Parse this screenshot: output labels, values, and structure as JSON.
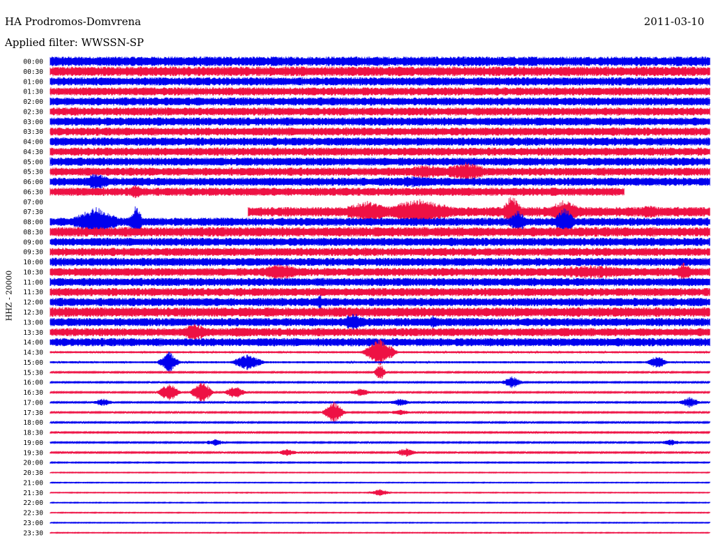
{
  "header": {
    "station": "HA Prodromos-Domvrena",
    "filter": "Applied filter: WWSSN-SP",
    "date": "2011-03-10",
    "channel": "HHZ - 20000"
  },
  "chart_data": {
    "type": "helicorder",
    "title": "HA Prodromos-Domvrena",
    "subtitle": "Applied filter: WWSSN-SP",
    "date": "2011-03-10",
    "ylabel": "HHZ - 20000",
    "row_labels": [
      "00:00",
      "00:30",
      "01:00",
      "01:30",
      "02:00",
      "02:30",
      "03:00",
      "03:30",
      "04:00",
      "04:30",
      "05:00",
      "05:30",
      "06:00",
      "06:30",
      "07:00",
      "07:30",
      "08:00",
      "08:30",
      "09:00",
      "09:30",
      "10:00",
      "10:30",
      "11:00",
      "11:30",
      "12:00",
      "12:30",
      "13:00",
      "13:30",
      "14:00",
      "14:30",
      "15:00",
      "15:30",
      "16:00",
      "16:30",
      "17:00",
      "17:30",
      "18:00",
      "18:30",
      "19:00",
      "19:30",
      "20:00",
      "20:30",
      "21:00",
      "21:30",
      "22:00",
      "22:30",
      "23:00",
      "23:30"
    ],
    "colors": {
      "even_rows": "#0000ee",
      "odd_rows": "#ee1144"
    },
    "noise_half_width": [
      7,
      7,
      6,
      6,
      6,
      6,
      6,
      6,
      6,
      6,
      6,
      6,
      6,
      6,
      6,
      7,
      6,
      7,
      6,
      6,
      6,
      6,
      6,
      6,
      6,
      7,
      6,
      6,
      6,
      1.5,
      1.5,
      1,
      1,
      1,
      1,
      1,
      1,
      1,
      1,
      1,
      0.8,
      0.6,
      0.6,
      0.6,
      0.6,
      0.6,
      0.6,
      0.6
    ],
    "gaps": [
      {
        "row": 14,
        "from": 0.0,
        "to": 1.0
      },
      {
        "row": 15,
        "from": 0.0,
        "to": 0.3
      },
      {
        "row": 13,
        "from": 0.87,
        "to": 1.0
      }
    ],
    "events": [
      {
        "row": 11,
        "t": 0.57,
        "amp": 10,
        "dur": 0.08
      },
      {
        "row": 11,
        "t": 0.63,
        "amp": 14,
        "dur": 0.06
      },
      {
        "row": 12,
        "t": 0.07,
        "amp": 14,
        "dur": 0.03
      },
      {
        "row": 12,
        "t": 0.55,
        "amp": 8,
        "dur": 0.12
      },
      {
        "row": 13,
        "t": 0.13,
        "amp": 10,
        "dur": 0.02
      },
      {
        "row": 13,
        "t": 0.62,
        "amp": 6,
        "dur": 0.2
      },
      {
        "row": 15,
        "t": 0.48,
        "amp": 16,
        "dur": 0.06
      },
      {
        "row": 15,
        "t": 0.56,
        "amp": 20,
        "dur": 0.08
      },
      {
        "row": 15,
        "t": 0.7,
        "amp": 26,
        "dur": 0.02
      },
      {
        "row": 15,
        "t": 0.78,
        "amp": 18,
        "dur": 0.04
      },
      {
        "row": 15,
        "t": 0.91,
        "amp": 10,
        "dur": 0.05
      },
      {
        "row": 16,
        "t": 0.07,
        "amp": 22,
        "dur": 0.05
      },
      {
        "row": 16,
        "t": 0.13,
        "amp": 24,
        "dur": 0.015
      },
      {
        "row": 16,
        "t": 0.71,
        "amp": 18,
        "dur": 0.02
      },
      {
        "row": 16,
        "t": 0.78,
        "amp": 22,
        "dur": 0.02
      },
      {
        "row": 21,
        "t": 0.35,
        "amp": 12,
        "dur": 0.06
      },
      {
        "row": 21,
        "t": 0.82,
        "amp": 10,
        "dur": 0.15
      },
      {
        "row": 21,
        "t": 0.96,
        "amp": 14,
        "dur": 0.02
      },
      {
        "row": 24,
        "t": 0.41,
        "amp": 10,
        "dur": 0.02
      },
      {
        "row": 26,
        "t": 0.46,
        "amp": 14,
        "dur": 0.03
      },
      {
        "row": 26,
        "t": 0.58,
        "amp": 10,
        "dur": 0.02
      },
      {
        "row": 27,
        "t": 0.22,
        "amp": 14,
        "dur": 0.03
      },
      {
        "row": 27,
        "t": 0.29,
        "amp": 8,
        "dur": 0.05
      },
      {
        "row": 27,
        "t": 0.78,
        "amp": 8,
        "dur": 0.02
      },
      {
        "row": 29,
        "t": 0.5,
        "amp": 20,
        "dur": 0.03
      },
      {
        "row": 30,
        "t": 0.18,
        "amp": 16,
        "dur": 0.02
      },
      {
        "row": 30,
        "t": 0.3,
        "amp": 12,
        "dur": 0.03
      },
      {
        "row": 30,
        "t": 0.92,
        "amp": 10,
        "dur": 0.02
      },
      {
        "row": 31,
        "t": 0.5,
        "amp": 14,
        "dur": 0.01
      },
      {
        "row": 32,
        "t": 0.7,
        "amp": 9,
        "dur": 0.02
      },
      {
        "row": 33,
        "t": 0.18,
        "amp": 14,
        "dur": 0.02
      },
      {
        "row": 33,
        "t": 0.23,
        "amp": 18,
        "dur": 0.02
      },
      {
        "row": 33,
        "t": 0.28,
        "amp": 10,
        "dur": 0.02
      },
      {
        "row": 33,
        "t": 0.47,
        "amp": 6,
        "dur": 0.02
      },
      {
        "row": 34,
        "t": 0.08,
        "amp": 6,
        "dur": 0.02
      },
      {
        "row": 34,
        "t": 0.53,
        "amp": 6,
        "dur": 0.02
      },
      {
        "row": 34,
        "t": 0.97,
        "amp": 8,
        "dur": 0.02
      },
      {
        "row": 35,
        "t": 0.43,
        "amp": 16,
        "dur": 0.02
      },
      {
        "row": 35,
        "t": 0.53,
        "amp": 5,
        "dur": 0.02
      },
      {
        "row": 38,
        "t": 0.25,
        "amp": 5,
        "dur": 0.02
      },
      {
        "row": 38,
        "t": 0.94,
        "amp": 5,
        "dur": 0.02
      },
      {
        "row": 39,
        "t": 0.36,
        "amp": 5,
        "dur": 0.02
      },
      {
        "row": 39,
        "t": 0.54,
        "amp": 7,
        "dur": 0.02
      },
      {
        "row": 43,
        "t": 0.5,
        "amp": 5,
        "dur": 0.02
      }
    ]
  }
}
